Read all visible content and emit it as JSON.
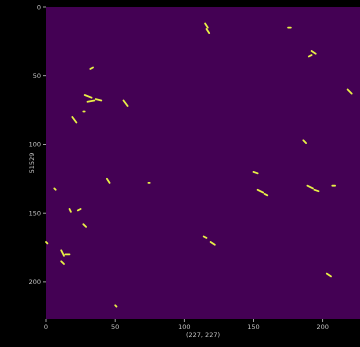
{
  "chart_data": {
    "type": "heatmap",
    "xlabel": "(227, 227)",
    "ylabel": "51529",
    "xlim": [
      0,
      227
    ],
    "ylim": [
      227,
      0
    ],
    "x_ticks": [
      0,
      50,
      100,
      150,
      200
    ],
    "y_ticks": [
      0,
      50,
      100,
      150,
      200
    ],
    "x_tick_labels": [
      "0",
      "50",
      "100",
      "150",
      "200"
    ],
    "y_tick_labels": [
      "0",
      "50",
      "100",
      "150",
      "200"
    ],
    "background_color": "#440154",
    "foreground_color": "#e8f046",
    "grid": false,
    "segments": [
      [
        [
          115,
          12
        ],
        [
          117,
          15
        ]
      ],
      [
        [
          116,
          16
        ],
        [
          118,
          19
        ]
      ],
      [
        [
          175,
          15
        ],
        [
          177,
          15
        ]
      ],
      [
        [
          192,
          32
        ],
        [
          195,
          34
        ]
      ],
      [
        [
          190,
          36
        ],
        [
          192,
          35
        ]
      ],
      [
        [
          32,
          45
        ],
        [
          34,
          44
        ]
      ],
      [
        [
          218,
          60
        ],
        [
          221,
          63
        ]
      ],
      [
        [
          28,
          64
        ],
        [
          33,
          66
        ]
      ],
      [
        [
          30,
          69
        ],
        [
          35,
          68
        ]
      ],
      [
        [
          36,
          67
        ],
        [
          40,
          68
        ]
      ],
      [
        [
          56,
          68
        ],
        [
          59,
          72
        ]
      ],
      [
        [
          19,
          80
        ],
        [
          22,
          84
        ]
      ],
      [
        [
          27,
          76
        ],
        [
          28,
          76
        ]
      ],
      [
        [
          186,
          97
        ],
        [
          188,
          99
        ]
      ],
      [
        [
          150,
          120
        ],
        [
          153,
          121
        ]
      ],
      [
        [
          44,
          125
        ],
        [
          46,
          128
        ]
      ],
      [
        [
          74,
          128
        ],
        [
          75,
          128
        ]
      ],
      [
        [
          189,
          130
        ],
        [
          193,
          132
        ]
      ],
      [
        [
          194,
          133
        ],
        [
          197,
          134
        ]
      ],
      [
        [
          153,
          133
        ],
        [
          157,
          135
        ]
      ],
      [
        [
          158,
          136
        ],
        [
          160,
          137
        ]
      ],
      [
        [
          207,
          130
        ],
        [
          209,
          130
        ]
      ],
      [
        [
          6,
          132
        ],
        [
          7,
          133
        ]
      ],
      [
        [
          17,
          147
        ],
        [
          18,
          149
        ]
      ],
      [
        [
          23,
          148
        ],
        [
          25,
          147
        ]
      ],
      [
        [
          27,
          158
        ],
        [
          29,
          160
        ]
      ],
      [
        [
          114,
          167
        ],
        [
          116,
          168
        ]
      ],
      [
        [
          119,
          171
        ],
        [
          122,
          173
        ]
      ],
      [
        [
          0,
          171
        ],
        [
          1,
          172
        ]
      ],
      [
        [
          11,
          177
        ],
        [
          13,
          181
        ]
      ],
      [
        [
          14,
          180
        ],
        [
          17,
          180
        ]
      ],
      [
        [
          11,
          185
        ],
        [
          13,
          187
        ]
      ],
      [
        [
          203,
          194
        ],
        [
          206,
          196
        ]
      ],
      [
        [
          50,
          217
        ],
        [
          51,
          218
        ]
      ]
    ]
  }
}
